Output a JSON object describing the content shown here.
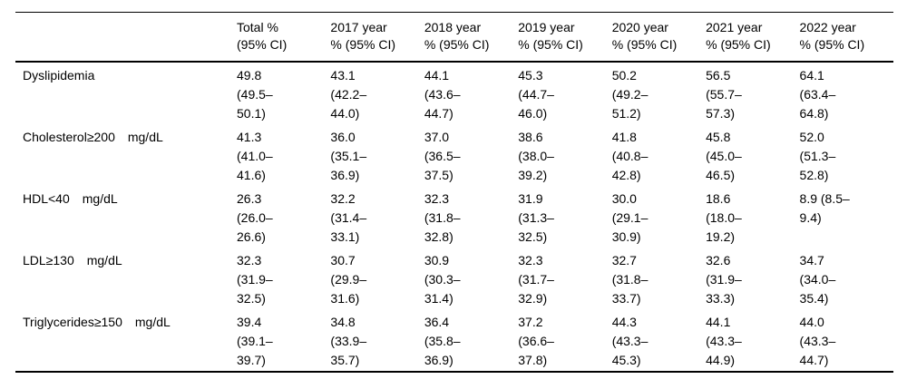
{
  "table": {
    "corner": "",
    "columns": [
      "Total %\n(95% CI)",
      "2017 year\n% (95% CI)",
      "2018 year\n% (95% CI)",
      "2019 year\n% (95% CI)",
      "2020 year\n% (95% CI)",
      "2021 year\n% (95% CI)",
      "2022 year\n% (95% CI)"
    ],
    "rows": [
      {
        "label": "Dyslipidemia",
        "unit": "",
        "cells": [
          "49.8\n(49.5–\n50.1)",
          "43.1\n(42.2–\n44.0)",
          "44.1\n(43.6–\n44.7)",
          "45.3\n(44.7–\n46.0)",
          "50.2\n(49.2–\n51.2)",
          "56.5\n(55.7–\n57.3)",
          "64.1\n(63.4–\n64.8)"
        ]
      },
      {
        "label": "Cholesterol≥200",
        "unit": "mg/dL",
        "cells": [
          "41.3\n(41.0–\n41.6)",
          "36.0\n(35.1–\n36.9)",
          "37.0\n(36.5–\n37.5)",
          "38.6\n(38.0–\n39.2)",
          "41.8\n(40.8–\n42.8)",
          "45.8\n(45.0–\n46.5)",
          "52.0\n(51.3–\n52.8)"
        ]
      },
      {
        "label": "HDL<40",
        "unit": "mg/dL",
        "cells": [
          "26.3\n(26.0–\n26.6)",
          "32.2\n(31.4–\n33.1)",
          "32.3\n(31.8–\n32.8)",
          "31.9\n(31.3–\n32.5)",
          "30.0\n(29.1–\n30.9)",
          "18.6\n(18.0–\n19.2)",
          "8.9 (8.5–\n9.4)"
        ]
      },
      {
        "label": "LDL≥130",
        "unit": "mg/dL",
        "cells": [
          "32.3\n(31.9–\n32.5)",
          "30.7\n(29.9–\n31.6)",
          "30.9\n(30.3–\n31.4)",
          "32.3\n(31.7–\n32.9)",
          "32.7\n(31.8–\n33.7)",
          "32.6\n(31.9–\n33.3)",
          "34.7\n(34.0–\n35.4)"
        ]
      },
      {
        "label": "Triglycerides≥150",
        "unit": "mg/dL",
        "cells": [
          "39.4\n(39.1–\n39.7)",
          "34.8\n(33.9–\n35.7)",
          "36.4\n(35.8–\n36.9)",
          "37.2\n(36.6–\n37.8)",
          "44.3\n(43.3–\n45.3)",
          "44.1\n(43.3–\n44.9)",
          "44.0\n(43.3–\n44.7)"
        ]
      }
    ]
  }
}
